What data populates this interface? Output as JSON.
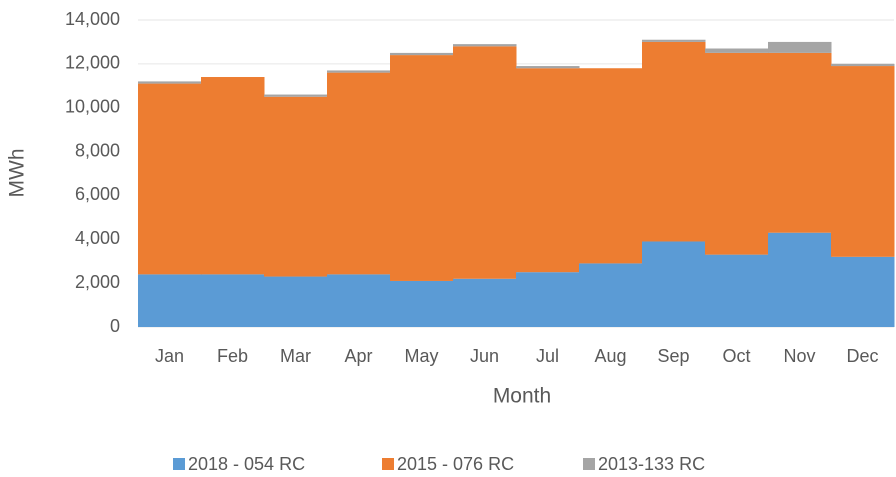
{
  "chart_data": {
    "type": "bar",
    "stacked": true,
    "x_label": "Month",
    "y_label": "MWh",
    "categories": [
      "Jan",
      "Feb",
      "Mar",
      "Apr",
      "May",
      "Jun",
      "Jul",
      "Aug",
      "Sep",
      "Oct",
      "Nov",
      "Dec"
    ],
    "series": [
      {
        "name": "2018 - 054 RC",
        "color": "#5b9bd5",
        "values": [
          2400,
          2400,
          2300,
          2400,
          2100,
          2200,
          2500,
          2900,
          3900,
          3300,
          4300,
          3200
        ]
      },
      {
        "name": "2015 - 076 RC",
        "color": "#ed7d31",
        "values": [
          8700,
          9000,
          8200,
          9200,
          10300,
          10600,
          9300,
          8900,
          9100,
          9200,
          8200,
          8700
        ]
      },
      {
        "name": "2013-133 RC",
        "color": "#a5a5a5",
        "values": [
          100,
          0,
          100,
          100,
          100,
          100,
          100,
          0,
          100,
          200,
          500,
          100
        ]
      }
    ],
    "ylim": [
      0,
      14000
    ],
    "yticks": [
      0,
      {
        "value": 2000,
        "label": "2,000"
      },
      {
        "value": 4000,
        "label": "4,000"
      },
      {
        "value": 6000,
        "label": "6,000"
      },
      {
        "value": 8000,
        "label": "8,000"
      },
      {
        "value": 10000,
        "label": "10,000"
      },
      {
        "value": 12000,
        "label": "12,000"
      },
      {
        "value": 14000,
        "label": "14,000"
      }
    ],
    "grid": true,
    "legend": "bottom"
  }
}
